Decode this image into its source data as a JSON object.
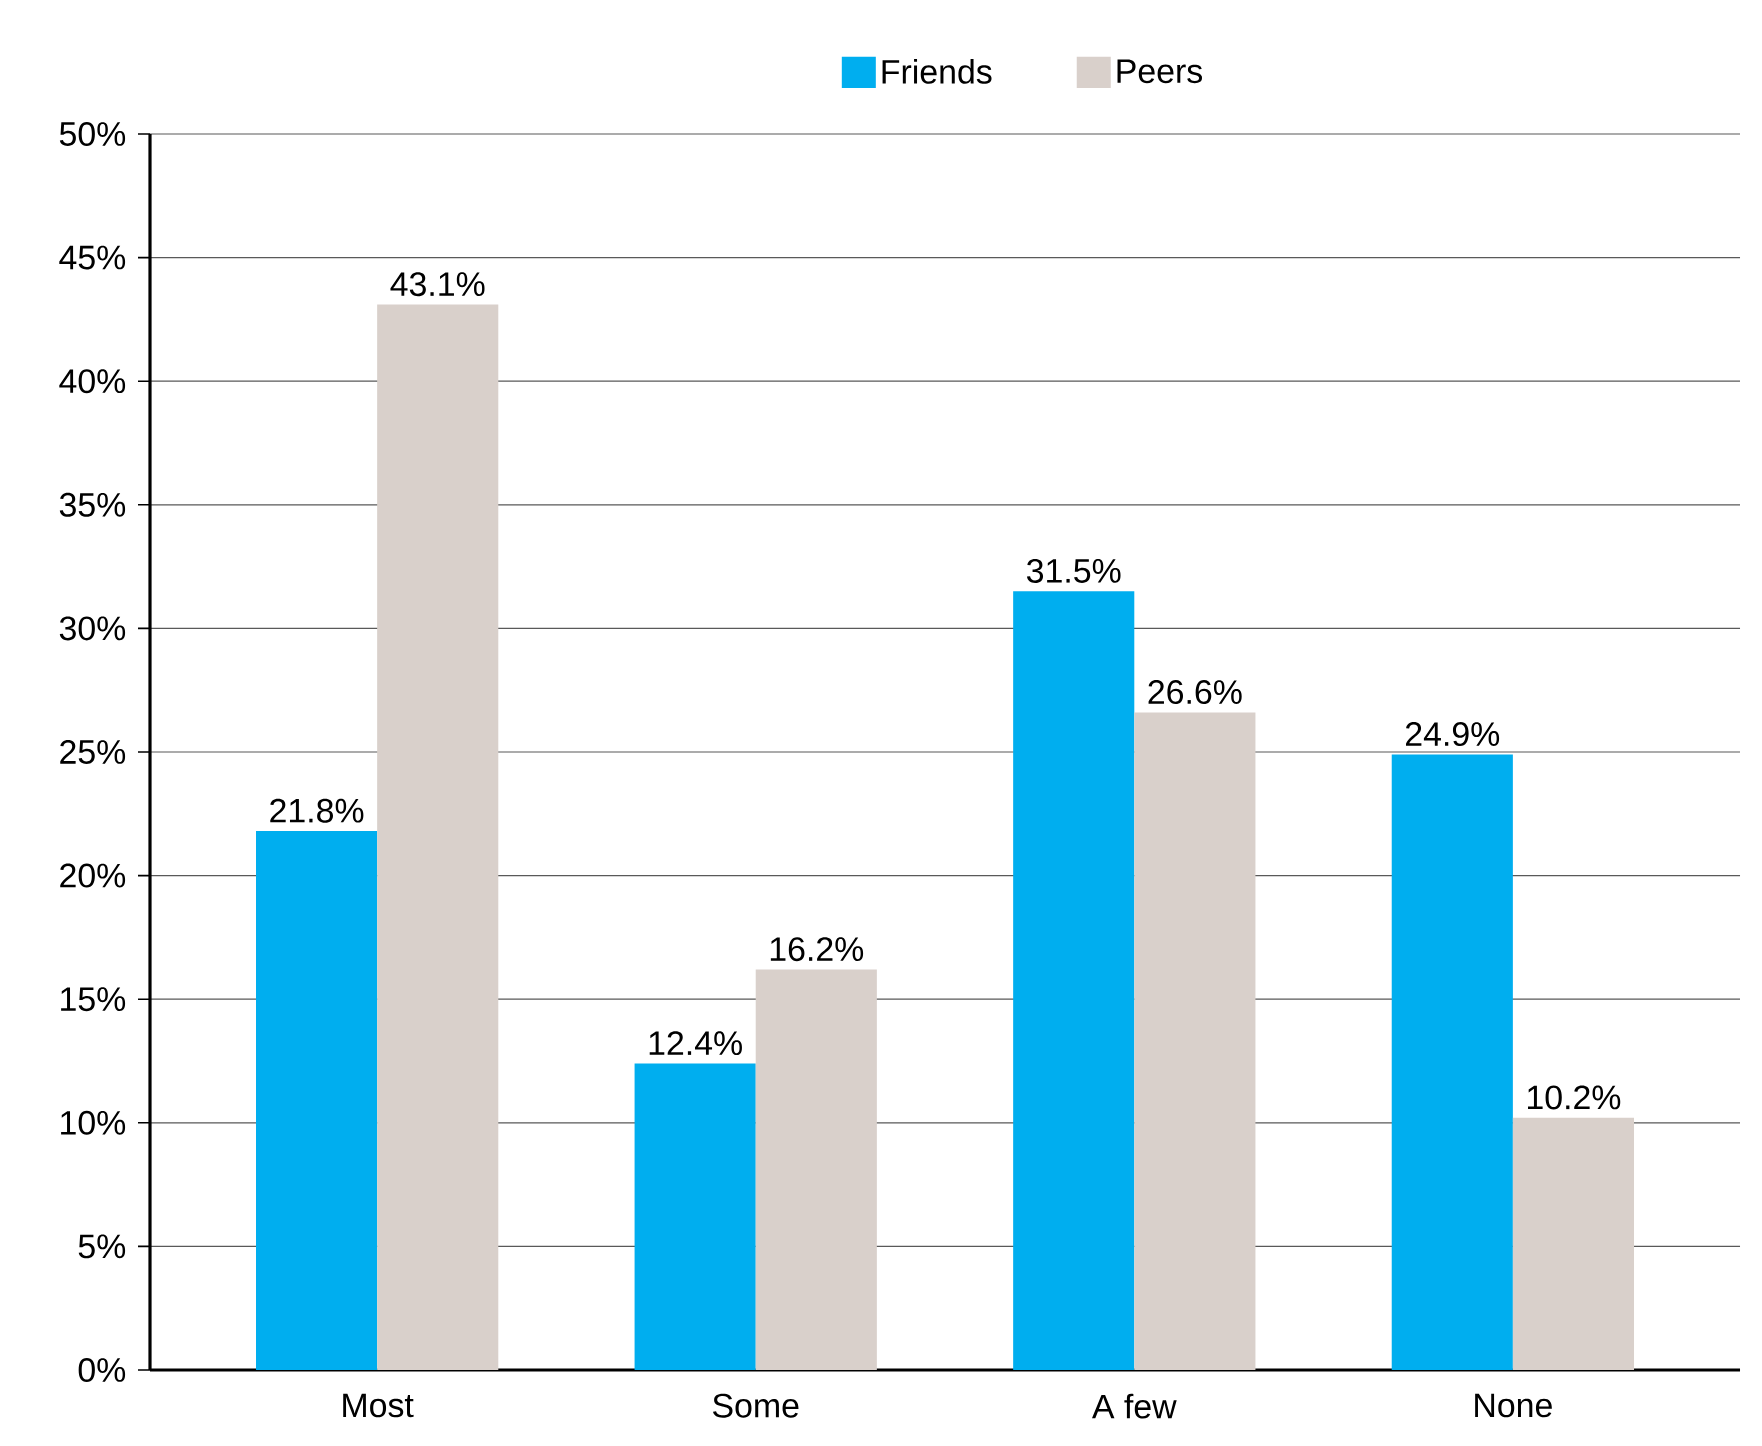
{
  "chart_data": {
    "type": "bar",
    "categories": [
      "Most",
      "Some",
      "A few",
      "None"
    ],
    "series": [
      {
        "name": "Friends",
        "color": "#00aeef",
        "values": [
          21.8,
          12.4,
          31.5,
          24.9
        ],
        "value_labels": [
          "21.8%",
          "12.4%",
          "31.5%",
          "24.9%"
        ]
      },
      {
        "name": "Peers",
        "color": "#d9d0cb",
        "values": [
          43.1,
          16.2,
          26.6,
          10.2
        ],
        "value_labels": [
          "43.1%",
          "16.2%",
          "26.6%",
          "10.2%"
        ]
      }
    ],
    "ylim": [
      0,
      50
    ],
    "yticks": [
      {
        "value": 0,
        "label": "0%"
      },
      {
        "value": 5,
        "label": "5%"
      },
      {
        "value": 10,
        "label": "10%"
      },
      {
        "value": 15,
        "label": "15%"
      },
      {
        "value": 20,
        "label": "20%"
      },
      {
        "value": 25,
        "label": "25%"
      },
      {
        "value": 30,
        "label": "30%"
      },
      {
        "value": 35,
        "label": "35%"
      },
      {
        "value": 40,
        "label": "40%"
      },
      {
        "value": 45,
        "label": "45%"
      },
      {
        "value": 50,
        "label": "50%"
      }
    ],
    "grid": "y",
    "legend": "top"
  }
}
